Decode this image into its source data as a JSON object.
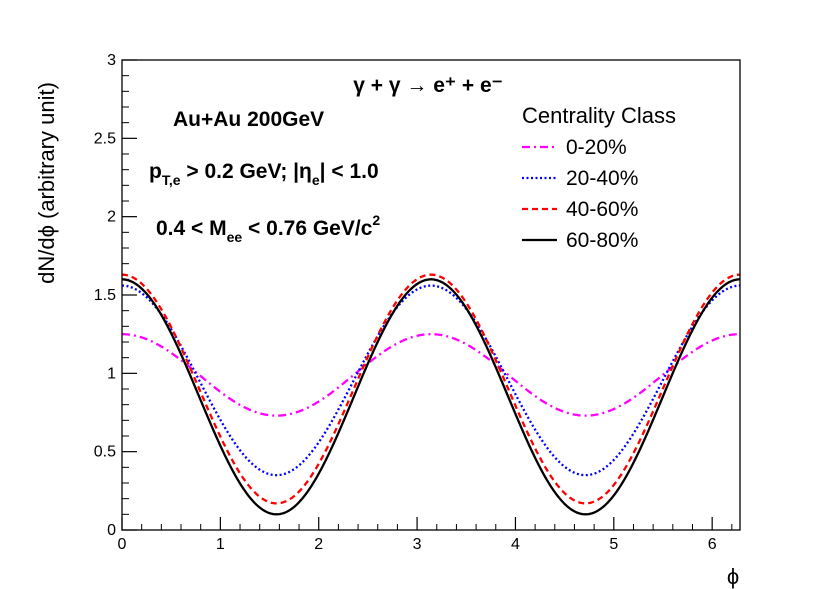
{
  "chart_data": {
    "type": "line",
    "title": "",
    "xlabel": "ϕ",
    "ylabel": "dN/dϕ (arbitrary unit)",
    "xlim": [
      0,
      6.283
    ],
    "ylim": [
      0,
      3
    ],
    "x_ticks": [
      "0",
      "1",
      "2",
      "3",
      "4",
      "5",
      "6"
    ],
    "y_ticks": [
      "0",
      "0.5",
      "1",
      "1.5",
      "2",
      "2.5",
      "3"
    ],
    "grid": false,
    "annotations": {
      "reaction": "γ + γ → e⁺ + e⁻",
      "system": "Au+Au  200GeV",
      "pt_cut": "p_{T,e} > 0.2 GeV;  |η_e| < 1.0",
      "mass_cut": "0.4 < M_ee < 0.76 GeV/c²",
      "pt_main": "p",
      "pt_sub": "T,e",
      "pt_rest": " > 0.2 GeV;   |η",
      "eta_sub": "e",
      "eta_rest": "| < 1.0",
      "mass_main": "0.4 < M",
      "mass_sub": "ee",
      "mass_rest": " < 0.76 GeV/c",
      "mass_sup": "2"
    },
    "legend": {
      "title": "Centrality Class",
      "position": "top-right"
    },
    "model": "dN/dϕ = A + B·cos(2ϕ)",
    "series": [
      {
        "name": "0-20%",
        "color": "#ff00ff",
        "dash": "dash-dot",
        "A": 0.99,
        "B": 0.26,
        "values_at": {
          "x": [
            0,
            1.571,
            3.142,
            4.712,
            6.283
          ],
          "y": [
            1.25,
            0.73,
            1.25,
            0.73,
            1.25
          ]
        }
      },
      {
        "name": "20-40%",
        "color": "#0000ff",
        "dash": "dotted",
        "A": 0.955,
        "B": 0.605,
        "values_at": {
          "x": [
            0,
            1.571,
            3.142,
            4.712,
            6.283
          ],
          "y": [
            1.56,
            0.35,
            1.56,
            0.35,
            1.56
          ]
        }
      },
      {
        "name": "40-60%",
        "color": "#ff0000",
        "dash": "dashed",
        "A": 0.9,
        "B": 0.73,
        "values_at": {
          "x": [
            0,
            1.571,
            3.142,
            4.712,
            6.283
          ],
          "y": [
            1.63,
            0.17,
            1.63,
            0.17,
            1.63
          ]
        }
      },
      {
        "name": "60-80%",
        "color": "#000000",
        "dash": "solid",
        "A": 0.85,
        "B": 0.75,
        "values_at": {
          "x": [
            0,
            1.571,
            3.142,
            4.712,
            6.283
          ],
          "y": [
            1.6,
            0.1,
            1.6,
            0.1,
            1.6
          ]
        }
      }
    ]
  }
}
